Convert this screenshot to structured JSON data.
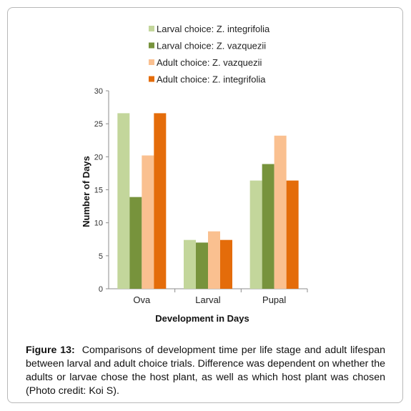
{
  "chart_data": {
    "type": "bar",
    "title": "",
    "xlabel": "Development in Days",
    "ylabel": "Number of Days",
    "ylim": [
      0,
      30
    ],
    "yticks": [
      0,
      5,
      10,
      15,
      20,
      25,
      30
    ],
    "categories": [
      "Ova",
      "Larval",
      "Pupal"
    ],
    "series": [
      {
        "name": "Larval choice: Z. integrifolia",
        "color": "#c3d69b",
        "values": [
          26.6,
          7.4,
          16.4
        ]
      },
      {
        "name": "Larval choice: Z. vazquezii",
        "color": "#77933c",
        "values": [
          13.9,
          7.0,
          18.9
        ]
      },
      {
        "name": "Adult choice: Z. vazquezii",
        "color": "#fac090",
        "values": [
          20.2,
          8.7,
          23.2
        ]
      },
      {
        "name": "Adult choice: Z. integrifolia",
        "color": "#e46c0a",
        "values": [
          26.6,
          7.4,
          16.4
        ]
      }
    ],
    "grid": false,
    "legend_position": "top"
  },
  "caption": {
    "label": "Figure 13:",
    "text": "Comparisons of development time per life stage and adult lifespan between larval and adult choice trials. Difference was dependent on whether the adults or larvae chose the host plant, as well as which host plant was chosen (Photo credit: Koi S)."
  }
}
